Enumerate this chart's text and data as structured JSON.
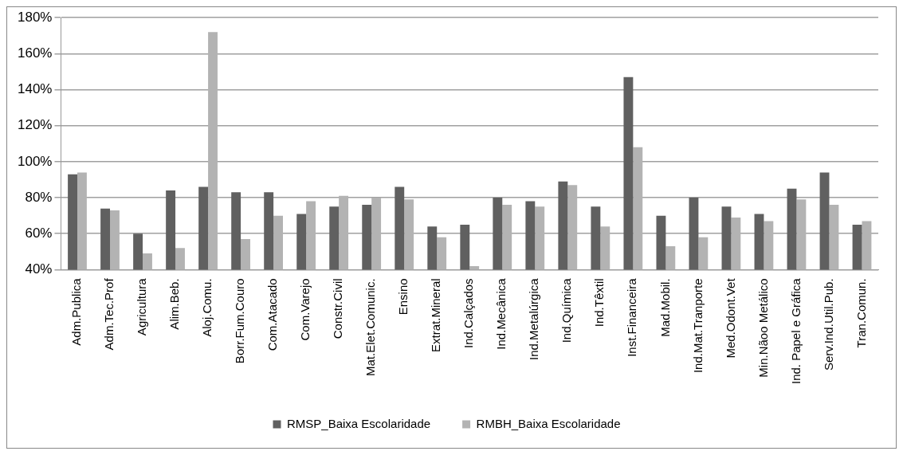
{
  "chart_data": {
    "type": "bar",
    "categories": [
      "Adm.Publica",
      "Adm.Tec.Prof",
      "Agricultura",
      "Alim.Beb.",
      "Aloj.Comu.",
      "Borr.Fum.Couro",
      "Com.Atacado",
      "Com.Varejo",
      "Constr.Civil",
      "Mat.Elet.Comunic.",
      "Ensino",
      "Extrat.Mineral",
      "Ind.Calçados",
      "Ind.Mecânica",
      "Ind.Metalúrgica",
      "Ind.Química",
      "Ind.Têxtil",
      "Inst.Financeira",
      "Mad.Mobil.",
      "Ind.Mat.Tranporte",
      "Med.Odont.Vet",
      "Min.Nãoo Metálico",
      "Ind. Papel e Gráfica",
      "Serv.Ind.Util.Pub.",
      "Tran.Comun."
    ],
    "series": [
      {
        "name": "RMSP_Baixa Escolaridade",
        "color": "#606060",
        "values": [
          93,
          74,
          60,
          84,
          86,
          83,
          83,
          71,
          75,
          76,
          86,
          64,
          65,
          80,
          78,
          89,
          75,
          147,
          70,
          80,
          75,
          71,
          85,
          94,
          65
        ]
      },
      {
        "name": "RMBH_Baixa Escolaridade",
        "color": "#b3b3b3",
        "values": [
          94,
          73,
          49,
          52,
          172,
          57,
          70,
          78,
          81,
          80,
          79,
          58,
          42,
          76,
          75,
          87,
          64,
          108,
          53,
          58,
          69,
          67,
          79,
          76,
          67
        ]
      }
    ],
    "ylim": [
      40,
      180
    ],
    "yticks": [
      {
        "value": 40,
        "label": "40%"
      },
      {
        "value": 60,
        "label": "60%"
      },
      {
        "value": 80,
        "label": "80%"
      },
      {
        "value": 100,
        "label": "100%"
      },
      {
        "value": 120,
        "label": "120%"
      },
      {
        "value": 140,
        "label": "140%"
      },
      {
        "value": 160,
        "label": "160%"
      },
      {
        "value": 180,
        "label": "180%"
      }
    ],
    "grid": "y",
    "legend": "bottom"
  }
}
